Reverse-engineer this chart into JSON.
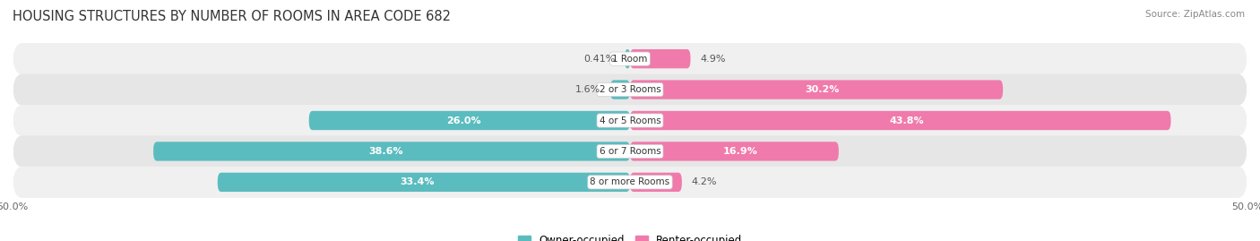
{
  "title": "HOUSING STRUCTURES BY NUMBER OF ROOMS IN AREA CODE 682",
  "source": "Source: ZipAtlas.com",
  "categories": [
    "1 Room",
    "2 or 3 Rooms",
    "4 or 5 Rooms",
    "6 or 7 Rooms",
    "8 or more Rooms"
  ],
  "owner_values": [
    0.41,
    1.6,
    26.0,
    38.6,
    33.4
  ],
  "renter_values": [
    4.9,
    30.2,
    43.8,
    16.9,
    4.2
  ],
  "owner_color": "#5bbcbf",
  "renter_color": "#f07aab",
  "row_bg_colors": [
    "#f0f0f0",
    "#e6e6e6"
  ],
  "axis_min": -50.0,
  "axis_max": 50.0,
  "bar_height": 0.62,
  "title_fontsize": 10.5,
  "source_fontsize": 7.5,
  "tick_fontsize": 8,
  "legend_fontsize": 8.5,
  "label_fontsize": 8,
  "cat_label_fontsize": 7.5,
  "owner_inside_threshold": 5.0,
  "renter_inside_threshold": 8.0
}
